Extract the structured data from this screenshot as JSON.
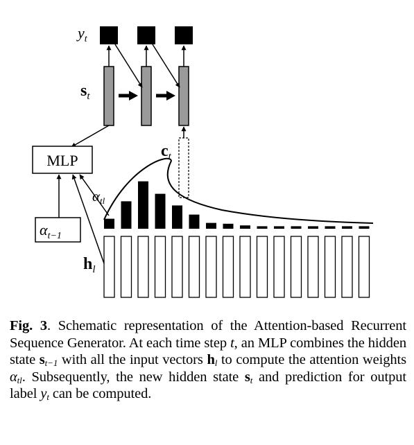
{
  "figure": {
    "labels": {
      "y_t": {
        "main": "y",
        "sub": "t"
      },
      "s_t": {
        "main": "s",
        "sub": "t"
      },
      "mlp": "MLP",
      "c_t": {
        "main": "c",
        "sub": "t"
      },
      "alpha_tl": {
        "main": "α",
        "sub": "tl"
      },
      "alpha_prev": {
        "main": "α",
        "sub": "t−1"
      },
      "h_l": {
        "main": "h",
        "sub": "l"
      }
    },
    "attention_weights": [
      0.12,
      0.33,
      0.57,
      0.42,
      0.28,
      0.17,
      0.07,
      0.06,
      0.04,
      0.03,
      0.03,
      0.03,
      0.03,
      0.03,
      0.03,
      0.03
    ],
    "input_vector_count": 16,
    "decoder_step_count": 3,
    "colors": {
      "state_fill": "#9a9a9a",
      "ink": "#000000",
      "background": "#ffffff"
    }
  },
  "caption": {
    "label": "Fig. 3",
    "sep": ". ",
    "p1": "Schematic representation of the Attention-based Recurrent Sequence Generator. At each time step ",
    "t": "t",
    "p2": ", an MLP combines the hidden state ",
    "s_prev": "s",
    "s_prev_sub": "t−1",
    "p3": " with all the input vectors ",
    "h": "h",
    "h_sub": "l",
    "p4": " to compute the attention weights ",
    "alpha": "α",
    "alpha_sub": "tl",
    "p5": ". Subsequently, the new hidden state ",
    "s_t": "s",
    "s_t_sub": "t",
    "p6": " and prediction for output label ",
    "y": "y",
    "y_sub": "t",
    "p7": " can be computed."
  }
}
